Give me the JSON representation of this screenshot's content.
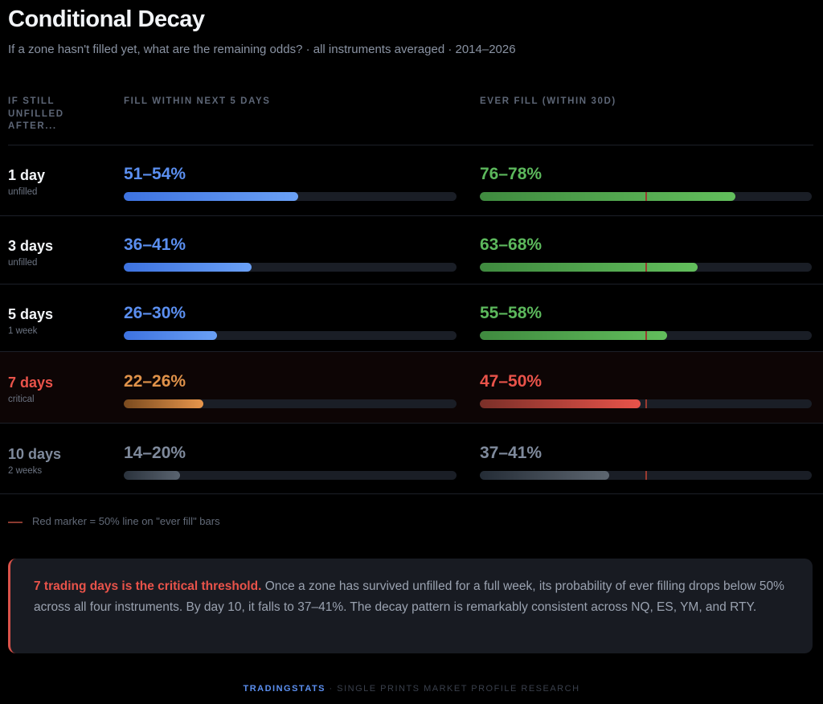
{
  "title": "Conditional Decay",
  "subtitle": "If a zone hasn't filled yet, what are the remaining odds? · all instruments averaged · 2014–2026",
  "chart_data": {
    "type": "bar",
    "columns": [
      "IF STILL UNFILLED AFTER...",
      "FILL WITHIN NEXT 5 DAYS",
      "EVER FILL (WITHIN 30D)"
    ],
    "xlim": [
      0,
      100
    ],
    "marker_value": 50,
    "rows": [
      {
        "label": "1 day",
        "sub": "unfilled",
        "fill5": "51–54%",
        "fill5_value": 52.5,
        "ever": "76–78%",
        "ever_value": 77,
        "status": "normal"
      },
      {
        "label": "3 days",
        "sub": "unfilled",
        "fill5": "36–41%",
        "fill5_value": 38.5,
        "ever": "63–68%",
        "ever_value": 65.5,
        "status": "normal"
      },
      {
        "label": "5 days",
        "sub": "1 week",
        "fill5": "26–30%",
        "fill5_value": 28,
        "ever": "55–58%",
        "ever_value": 56.5,
        "status": "normal"
      },
      {
        "label": "7 days",
        "sub": "critical",
        "fill5": "22–26%",
        "fill5_value": 24,
        "ever": "47–50%",
        "ever_value": 48.5,
        "status": "critical"
      },
      {
        "label": "10 days",
        "sub": "2 weeks",
        "fill5": "14–20%",
        "fill5_value": 17,
        "ever": "37–41%",
        "ever_value": 39,
        "status": "faded"
      }
    ],
    "colors": {
      "fill5": "#5b8ff0",
      "ever": "#5cb85c",
      "critical_fill5": "#e0924a",
      "critical_ever": "#e9534a",
      "faded": "#7f8a9c",
      "marker": "#9a3a30"
    }
  },
  "legend": "Red marker = 50% line on \"ever fill\" bars",
  "note": {
    "strong": "7 trading days is the critical threshold.",
    "text": " Once a zone has survived unfilled for a full week, its probability of ever filling drops below 50% across all four instruments. By day 10, it falls to 37–41%. The decay pattern is remarkably consistent across NQ, ES, YM, and RTY."
  },
  "footer": {
    "brand": "TRADINGSTATS",
    "text": " · SINGLE PRINTS MARKET PROFILE RESEARCH"
  }
}
